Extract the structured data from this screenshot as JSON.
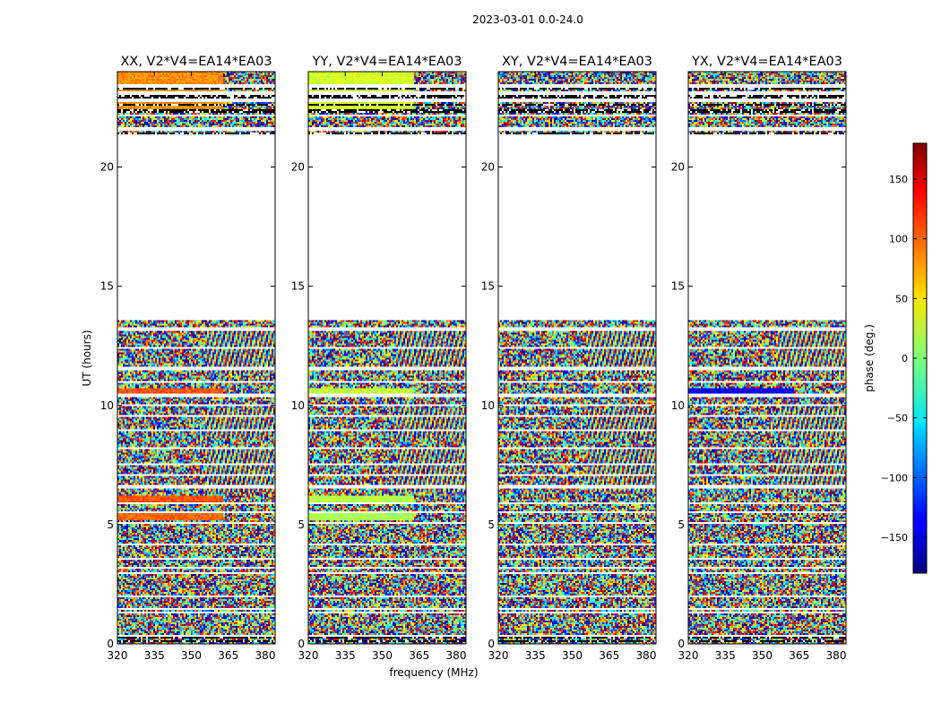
{
  "chart_data": {
    "type": "heatmap",
    "title": "2023-03-01 0.0-24.0",
    "xlabel": "frequency (MHz)",
    "ylabel": "UT (hours)",
    "x_range": [
      320,
      384
    ],
    "x_ticks": [
      320,
      335,
      350,
      365,
      380
    ],
    "y_range": [
      0,
      24
    ],
    "y_ticks": [
      0,
      5,
      10,
      15,
      20
    ],
    "colorbar": {
      "label": "phase (deg.)",
      "range": [
        -180,
        180
      ],
      "ticks": [
        -150,
        -100,
        -50,
        0,
        50,
        100,
        150
      ],
      "tick_labels": [
        "−150",
        "−100",
        "−50",
        "0",
        "50",
        "100",
        "150"
      ],
      "colormap": "jet"
    },
    "panels": [
      {
        "title": "XX, V2*V4=EA14*EA03",
        "pol": "XX"
      },
      {
        "title": "YY, V2*V4=EA14*EA03",
        "pol": "YY"
      },
      {
        "title": "XY, V2*V4=EA14*EA03",
        "pol": "XY"
      },
      {
        "title": "YX, V2*V4=EA14*EA03",
        "pol": "YX"
      }
    ],
    "data_gap_hours": [
      [
        13.6,
        21.35
      ],
      [
        22.7,
        22.9
      ],
      [
        10.35,
        10.5
      ]
    ],
    "coherent_rows": {
      "XX": [
        {
          "t0": 10.5,
          "t1": 10.75,
          "phase": 105
        },
        {
          "t0": 5.95,
          "t1": 6.2,
          "phase": 105
        },
        {
          "t0": 5.2,
          "t1": 5.45,
          "phase": 100
        },
        {
          "t0": 22.4,
          "t1": 24.0,
          "phase": 85
        }
      ],
      "YY": [
        {
          "t0": 10.5,
          "t1": 10.75,
          "phase": 25
        },
        {
          "t0": 5.95,
          "t1": 6.2,
          "phase": 20
        },
        {
          "t0": 5.2,
          "t1": 5.45,
          "phase": 15
        },
        {
          "t0": 22.4,
          "t1": 24.0,
          "phase": 30
        }
      ],
      "XY": [],
      "YX": [
        {
          "t0": 10.5,
          "t1": 10.75,
          "phase": -140
        }
      ]
    }
  }
}
